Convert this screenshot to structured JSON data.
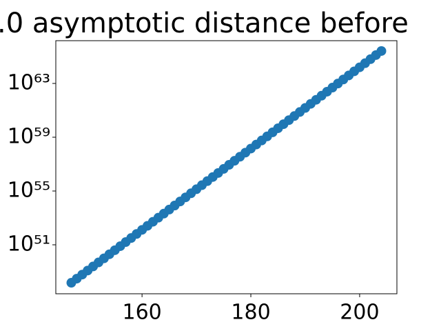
{
  "chart_data": {
    "type": "scatter",
    "title": ".0 asymptotic distance before",
    "color": "#1f77b4",
    "log_y": true,
    "x": [
      147,
      148,
      149,
      150,
      151,
      152,
      153,
      154,
      155,
      156,
      157,
      158,
      159,
      160,
      161,
      162,
      163,
      164,
      165,
      166,
      167,
      168,
      169,
      170,
      171,
      172,
      173,
      174,
      175,
      176,
      177,
      178,
      179,
      180,
      181,
      182,
      183,
      184,
      185,
      186,
      187,
      188,
      189,
      190,
      191,
      192,
      193,
      194,
      195,
      196,
      197,
      198,
      199,
      200,
      201,
      202,
      203,
      204
    ],
    "values": [
      1.51e+48,
      3.04e+48,
      6.09e+48,
      1.22e+49,
      2.45e+49,
      4.92e+49,
      9.86e+49,
      1.98e+50,
      3.97e+50,
      7.96e+50,
      1.6e+51,
      3.2e+51,
      6.43e+51,
      1.29e+52,
      2.58e+52,
      5.19e+52,
      1.04e+53,
      2.08e+53,
      4.18e+53,
      8.39e+53,
      1.68e+54,
      3.37e+54,
      6.77e+54,
      1.36e+55,
      2.72e+55,
      5.47e+55,
      1.1e+56,
      2.2e+56,
      4.41e+56,
      8.85e+56,
      1.77e+57,
      3.56e+57,
      7.14e+57,
      1.43e+58,
      2.87e+58,
      5.77e+58,
      1.16e+59,
      2.32e+59,
      4.65e+59,
      9.33e+59,
      1.87e+60,
      3.75e+60,
      7.53e+60,
      1.51e+61,
      3.03e+61,
      6.08e+61,
      1.22e+62,
      2.44e+62,
      4.9e+62,
      9.84e+62,
      1.97e+63,
      3.95e+63,
      7.94e+63,
      1.59e+64,
      3.19e+64,
      6.41e+64,
      1.29e+65,
      2.58e+65
    ],
    "xlim": [
      144.15,
      206.85
    ],
    "xticks": [
      160,
      180,
      200
    ],
    "ylim": [
      2.29e+47,
      1.51e+66
    ],
    "yticks": [
      {
        "value": 1e+51,
        "label": "10⁵¹"
      },
      {
        "value": 1e+55,
        "label": "10⁵⁵"
      },
      {
        "value": 1e+59,
        "label": "10⁵⁹"
      },
      {
        "value": 1e+63,
        "label": "10⁶³"
      }
    ]
  }
}
